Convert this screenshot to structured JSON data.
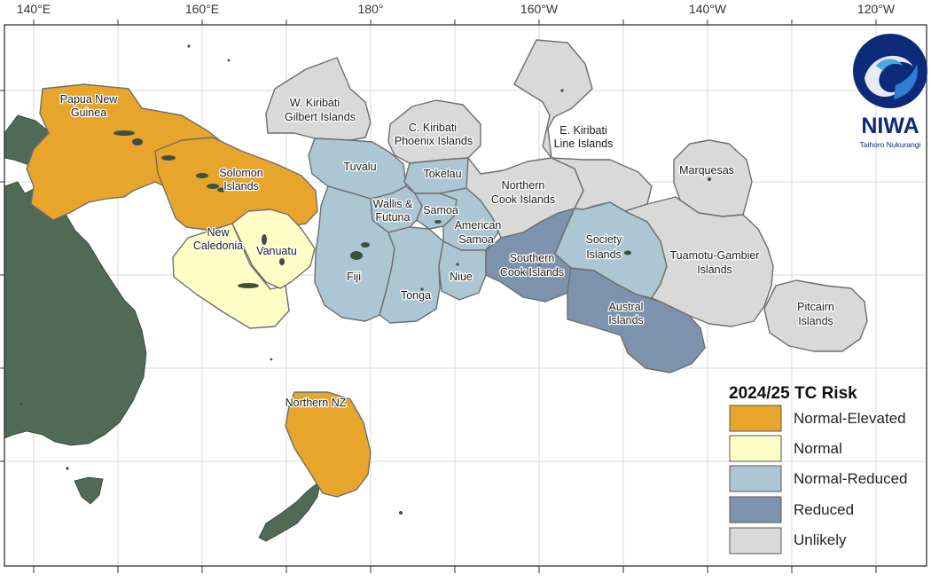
{
  "map": {
    "longitude_labels": [
      "140°E",
      "160°E",
      "180°",
      "160°W",
      "140°W",
      "120°W"
    ],
    "regions": [
      {
        "name": "Papua New Guinea",
        "risk": "Normal-Elevated"
      },
      {
        "name": "Solomon Islands",
        "risk": "Normal-Elevated"
      },
      {
        "name": "Vanuatu",
        "risk": "Normal"
      },
      {
        "name": "New Caledonia",
        "risk": "Normal"
      },
      {
        "name": "Northern NZ",
        "risk": "Normal-Elevated"
      },
      {
        "name": "W. Kiribati Gilbert Islands",
        "risk": "Unlikely"
      },
      {
        "name": "Tuvalu",
        "risk": "Normal-Reduced"
      },
      {
        "name": "C. Kiribati Phoenix Islands",
        "risk": "Unlikely"
      },
      {
        "name": "Tokelau",
        "risk": "Normal-Reduced"
      },
      {
        "name": "Wallis & Futuna",
        "risk": "Normal-Reduced"
      },
      {
        "name": "Samoa",
        "risk": "Normal-Reduced"
      },
      {
        "name": "American Samoa",
        "risk": "Normal-Reduced"
      },
      {
        "name": "Fiji",
        "risk": "Normal-Reduced"
      },
      {
        "name": "Tonga",
        "risk": "Normal-Reduced"
      },
      {
        "name": "Niue",
        "risk": "Normal-Reduced"
      },
      {
        "name": "Northern Cook Islands",
        "risk": "Unlikely"
      },
      {
        "name": "E. Kiribati Line Islands",
        "risk": "Unlikely"
      },
      {
        "name": "Southern Cook Islands",
        "risk": "Reduced"
      },
      {
        "name": "Society Islands",
        "risk": "Normal-Reduced"
      },
      {
        "name": "Austral Islands",
        "risk": "Reduced"
      },
      {
        "name": "Marquesas",
        "risk": "Unlikely"
      },
      {
        "name": "Tuamotu-Gambier Islands",
        "risk": "Unlikely"
      },
      {
        "name": "Pitcairn Islands",
        "risk": "Unlikely"
      }
    ],
    "labels": {
      "png": [
        "Papua New",
        "Guinea"
      ],
      "solomon": [
        "Solomon",
        "Islands"
      ],
      "vanuatu": [
        "Vanuatu"
      ],
      "newcal": [
        "New",
        "Caledonia"
      ],
      "nnz": [
        "Northern NZ"
      ],
      "wkiribati": [
        "W. Kiribati",
        "Gilbert Islands"
      ],
      "tuvalu": [
        "Tuvalu"
      ],
      "ckiribati": [
        "C. Kiribati",
        "Phoenix Islands"
      ],
      "tokelau": [
        "Tokelau"
      ],
      "wallis": [
        "Wallis &",
        "Futuna"
      ],
      "samoa": [
        "Samoa"
      ],
      "amsamoa": [
        "American",
        "Samoa"
      ],
      "fiji": [
        "Fiji"
      ],
      "tonga": [
        "Tonga"
      ],
      "niue": [
        "Niue"
      ],
      "ncook": [
        "Northern",
        "Cook Islands"
      ],
      "ekiribati": [
        "E. Kiribati",
        "Line Islands"
      ],
      "scook": [
        "Southern",
        "Cook Islands"
      ],
      "society": [
        "Society",
        "Islands"
      ],
      "austral": [
        "Austral",
        "Islands"
      ],
      "marquesas": [
        "Marquesas"
      ],
      "tuamotu": [
        "Tuamotu-Gambier",
        "Islands"
      ],
      "pitcairn": [
        "Pitcairn",
        "Islands"
      ]
    }
  },
  "legend": {
    "title": "2024/25 TC Risk",
    "items": [
      {
        "label": "Normal-Elevated",
        "color": "#e8a52b"
      },
      {
        "label": "Normal",
        "color": "#fffdc6"
      },
      {
        "label": "Normal-Reduced",
        "color": "#adc6d3"
      },
      {
        "label": "Reduced",
        "color": "#7d93ad"
      },
      {
        "label": "Unlikely",
        "color": "#d9d9d9"
      }
    ]
  },
  "colors": {
    "Normal-Elevated": "#e8a52b",
    "Normal": "#fffdc6",
    "Normal-Reduced": "#adc6d3",
    "Reduced": "#7d93ad",
    "Unlikely": "#d9d9d9",
    "land": "#4f6a55",
    "brand": "#0d2a7a"
  },
  "logo": {
    "name": "NIWA",
    "tagline": "Taihoro Nukurangi"
  }
}
